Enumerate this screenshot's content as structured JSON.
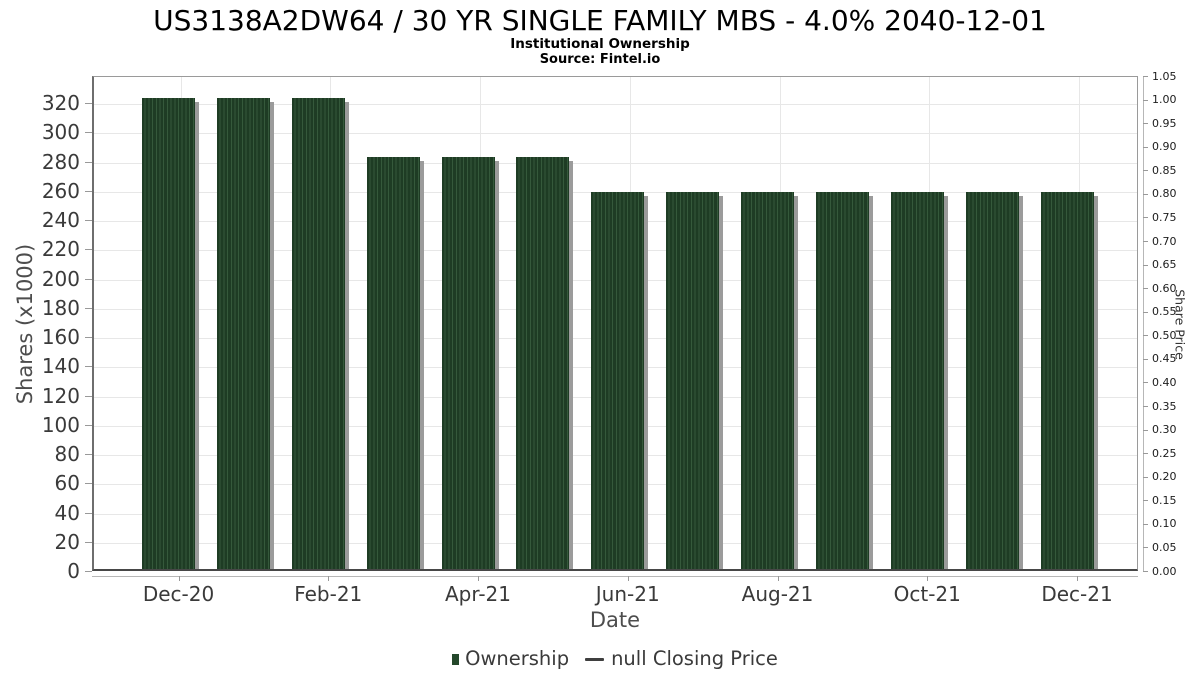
{
  "header": {
    "note": "header texts are bound from chart_data"
  },
  "chart_data": {
    "type": "bar",
    "title": "US3138A2DW64 / 30 YR SINGLE FAMILY MBS - 4.0% 2040-12-01",
    "subtitle": "Institutional Ownership",
    "source_note": "Source: Fintel.io",
    "xlabel": "Date",
    "ylabel": "Shares (x1000)",
    "ylabel_right": "Share Price",
    "categories": [
      "Dec-20",
      "Jan-21",
      "Feb-21",
      "Mar-21",
      "Apr-21",
      "May-21",
      "Jun-21",
      "Jul-21",
      "Aug-21",
      "Sep-21",
      "Oct-21",
      "Nov-21",
      "Dec-21"
    ],
    "series": [
      {
        "name": "Ownership",
        "type": "bar",
        "axis": "left",
        "values": [
          322,
          322,
          322,
          282,
          282,
          282,
          257.5,
          257.5,
          257.5,
          257.5,
          257.5,
          257.5,
          257.5
        ]
      },
      {
        "name": "null Closing Price",
        "type": "line",
        "axis": "right",
        "values": null
      }
    ],
    "ylim_left": [
      0,
      338.5
    ],
    "yticks_left": [
      0,
      20,
      40,
      60,
      80,
      100,
      120,
      140,
      160,
      180,
      200,
      220,
      240,
      260,
      280,
      300,
      320
    ],
    "ylim_right": [
      0,
      1.05
    ],
    "yticks_right": [
      "0.00",
      "0.05",
      "0.10",
      "0.15",
      "0.20",
      "0.25",
      "0.30",
      "0.35",
      "0.40",
      "0.45",
      "0.50",
      "0.55",
      "0.60",
      "0.65",
      "0.70",
      "0.75",
      "0.80",
      "0.85",
      "0.90",
      "0.95",
      "1.00",
      "1.05"
    ],
    "xticks": [
      {
        "label": "Dec-20",
        "month_index": 0
      },
      {
        "label": "Feb-21",
        "month_index": 2
      },
      {
        "label": "Apr-21",
        "month_index": 4
      },
      {
        "label": "Jun-21",
        "month_index": 6
      },
      {
        "label": "Aug-21",
        "month_index": 8
      },
      {
        "label": "Oct-21",
        "month_index": 10
      },
      {
        "label": "Dec-21",
        "month_index": 12
      }
    ],
    "grid": true,
    "legend_position": "bottom",
    "colors": {
      "bar_base": "#1e3c24",
      "bar_stripe": "#35593b",
      "bar_shadow": "#9b9b9b",
      "gridline": "#e7e7e7",
      "legend_square": "#24482b",
      "legend_line": "#3f3f3f"
    },
    "legend": {
      "items": [
        {
          "marker": "square",
          "label": "Ownership",
          "color": "#24482b"
        },
        {
          "marker": "line",
          "label": "null Closing Price",
          "color": "#3f3f3f"
        }
      ]
    }
  }
}
